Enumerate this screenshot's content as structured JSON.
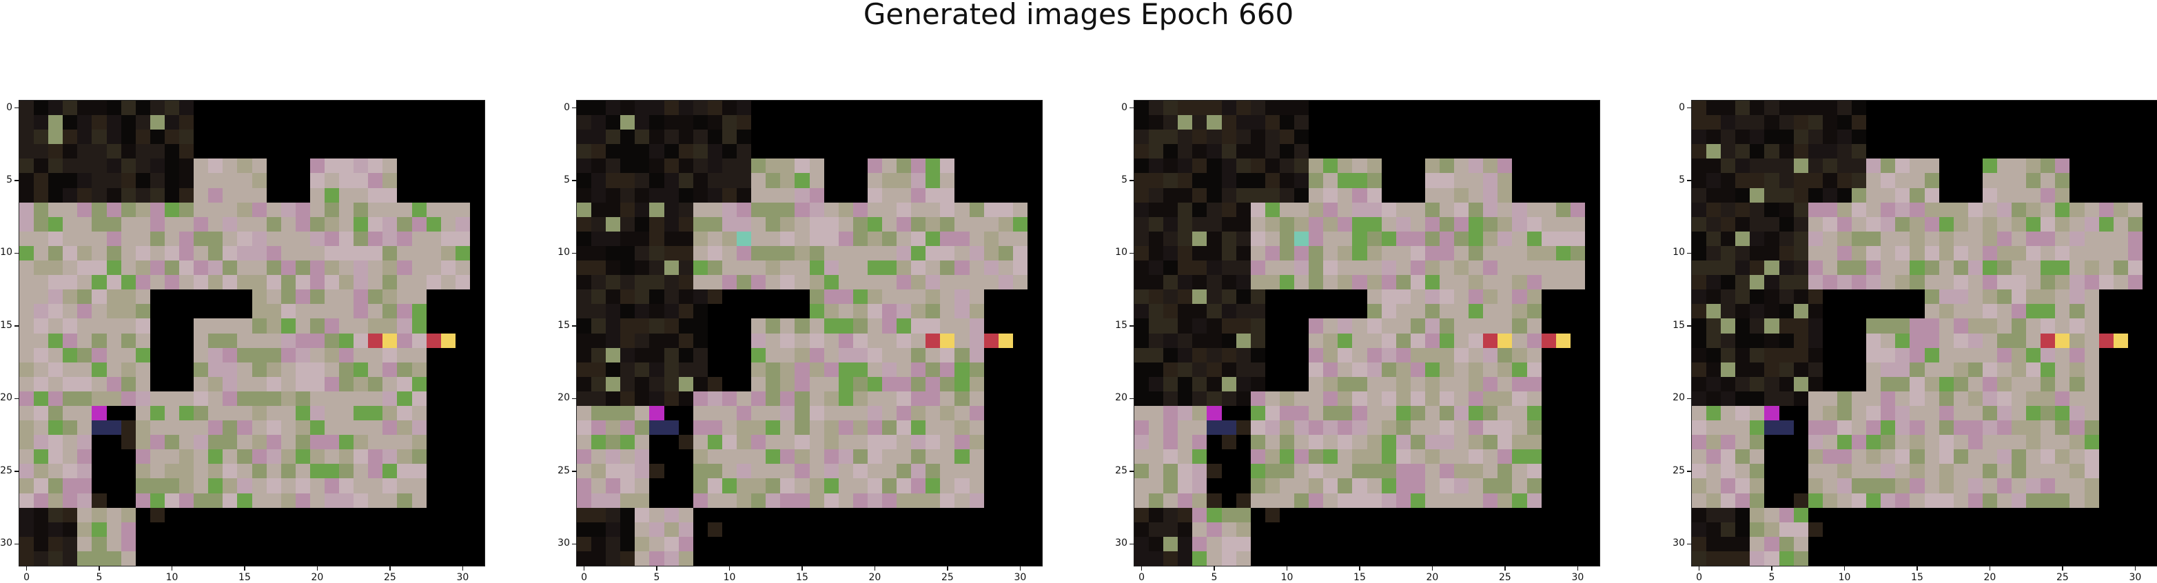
{
  "figure": {
    "title": "Generated images Epoch 660"
  },
  "image_grid": {
    "count": 4,
    "pixel_resolution": 32,
    "x_tick_labels": [
      "0",
      "5",
      "10",
      "15",
      "20",
      "25",
      "30"
    ],
    "y_tick_labels": [
      "0",
      "5",
      "10",
      "15",
      "20",
      "25",
      "30"
    ],
    "palette": {
      "background": "#000000",
      "light": "#b9aca3",
      "mauve": "#b78fa8",
      "olive": "#8e9a6d",
      "green": "#6ba34b",
      "dark": "#231c18",
      "red": "#c03c4a",
      "yellow": "#f2d35f",
      "magenta": "#bb2cc1",
      "navy": "#2b2e5a",
      "cyan": "#7ac9b2"
    }
  }
}
